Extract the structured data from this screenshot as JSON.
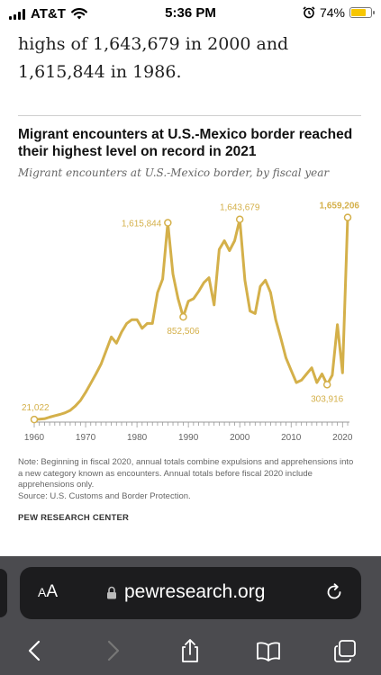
{
  "status_bar": {
    "carrier": "AT&T",
    "time": "5:36 PM",
    "battery": "74%",
    "alarm_icon": "alarm-clock-icon",
    "wifi_icon": "wifi-icon"
  },
  "article": {
    "line1": "highs of 1,643,679 in 2000 and",
    "line2": "1,615,844 in 1986."
  },
  "chart_data": {
    "type": "line",
    "title": "Migrant encounters at U.S.-Mexico border reached their highest level on record in 2021",
    "subtitle": "Migrant encounters at U.S.-Mexico border, by fiscal year",
    "xlabel": "",
    "ylabel": "",
    "xlim": [
      1960,
      2021
    ],
    "ylim": [
      0,
      1700000
    ],
    "x_ticks": [
      "1960",
      "1970",
      "1980",
      "1990",
      "2000",
      "2010",
      "2020"
    ],
    "line_color": "#d4b04a",
    "grid": false,
    "series": [
      {
        "x": [
          1960,
          1961,
          1962,
          1963,
          1964,
          1965,
          1966,
          1967,
          1968,
          1969,
          1970,
          1971,
          1972,
          1973,
          1974,
          1975,
          1976,
          1977,
          1978,
          1979,
          1980,
          1981,
          1982,
          1983,
          1984,
          1985,
          1986,
          1987,
          1988,
          1989,
          1990,
          1991,
          1992,
          1993,
          1994,
          1995,
          1996,
          1997,
          1998,
          1999,
          2000,
          2001,
          2002,
          2003,
          2004,
          2005,
          2006,
          2007,
          2008,
          2009,
          2010,
          2011,
          2012,
          2013,
          2014,
          2015,
          2016,
          2017,
          2018,
          2019,
          2020,
          2021
        ],
        "values": [
          21022,
          23000,
          27000,
          40000,
          52000,
          62000,
          75000,
          95000,
          130000,
          175000,
          240000,
          315000,
          390000,
          470000,
          580000,
          690000,
          640000,
          730000,
          800000,
          830000,
          830000,
          760000,
          800000,
          800000,
          1050000,
          1160000,
          1615844,
          1200000,
          1000000,
          852506,
          980000,
          1000000,
          1060000,
          1130000,
          1170000,
          950000,
          1400000,
          1470000,
          1390000,
          1470000,
          1643679,
          1150000,
          900000,
          880000,
          1100000,
          1150000,
          1050000,
          830000,
          680000,
          520000,
          420000,
          320000,
          340000,
          390000,
          440000,
          320000,
          390000,
          303916,
          380000,
          790000,
          400000,
          1659206
        ]
      }
    ],
    "annotations": [
      {
        "x": 1960,
        "y": 21022,
        "label": "21,022",
        "position": "above"
      },
      {
        "x": 1986,
        "y": 1615844,
        "label": "1,615,844",
        "position": "left"
      },
      {
        "x": 1989,
        "y": 852506,
        "label": "852,506",
        "position": "below"
      },
      {
        "x": 2000,
        "y": 1643679,
        "label": "1,643,679",
        "position": "above"
      },
      {
        "x": 2017,
        "y": 303916,
        "label": "303,916",
        "position": "below"
      },
      {
        "x": 2021,
        "y": 1659206,
        "label": "1,659,206",
        "position": "above-bold"
      }
    ],
    "note": "Note: Beginning in fiscal 2020, annual totals combine expulsions and apprehensions into a new category known as encounters. Annual totals before fiscal 2020 include apprehensions only.",
    "source": "Source: U.S. Customs and Border Protection.",
    "credit": "PEW RESEARCH CENTER"
  },
  "browser": {
    "aa_label_small": "A",
    "aa_label_large": "A",
    "url": "pewresearch.org",
    "lock_icon": "lock-icon",
    "reload_icon": "reload-icon",
    "toolbar_icons": [
      "back-icon",
      "forward-icon",
      "share-icon",
      "bookmarks-icon",
      "tabs-icon"
    ]
  }
}
